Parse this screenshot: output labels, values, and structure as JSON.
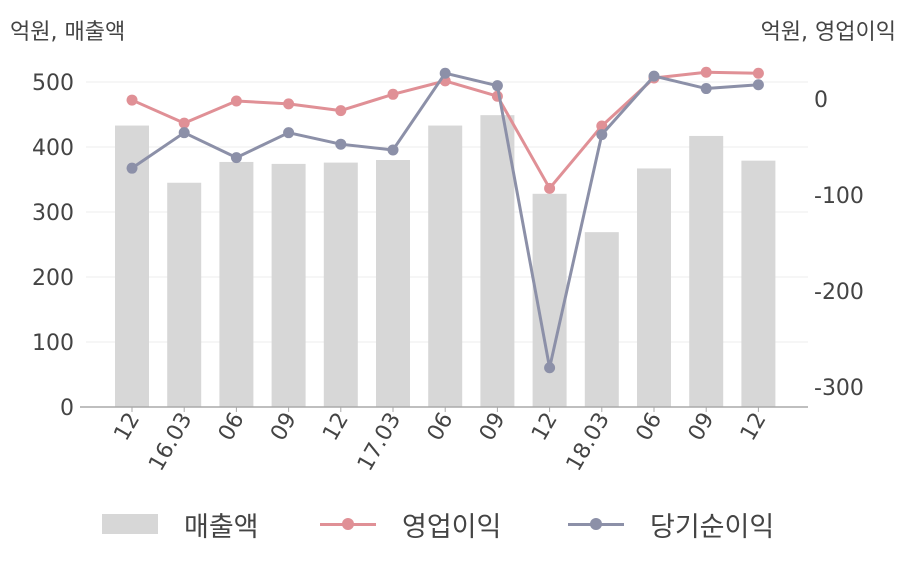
{
  "units": {
    "left": "억원, 매출액",
    "right": "억원, 영업이익"
  },
  "colors": {
    "bar": "#d7d7d7",
    "op": "#e09096",
    "net": "#8c90a8",
    "axis": "#aaaaaa",
    "grid": "#ececec"
  },
  "legend": {
    "bar": "매출액",
    "op": "영업이익",
    "net": "당기순이익"
  },
  "chart_data": {
    "type": "bar+line",
    "categories": [
      "12",
      "16.03",
      "06",
      "09",
      "12",
      "17.03",
      "06",
      "09",
      "12",
      "18.03",
      "06",
      "09",
      "12"
    ],
    "y_left": {
      "ylim": [
        0,
        500
      ],
      "ticks": [
        "0",
        "100",
        "200",
        "300",
        "400",
        "500"
      ]
    },
    "y_right": {
      "ylim": [
        -322,
        22
      ],
      "ticks": [
        "0",
        "-100",
        "-200",
        "-300"
      ]
    },
    "series": [
      {
        "name": "매출액",
        "type": "bar",
        "axis": "left",
        "values": [
          433,
          345,
          377,
          374,
          376,
          380,
          433,
          449,
          328,
          269,
          367,
          417,
          379
        ]
      },
      {
        "name": "영업이익",
        "type": "line",
        "axis": "right",
        "values": [
          -1,
          -25,
          -2,
          -5,
          -12,
          5,
          19,
          3,
          -93,
          -28,
          22,
          28,
          27
        ]
      },
      {
        "name": "당기순이익",
        "type": "line",
        "axis": "right",
        "values": [
          -72,
          -35,
          -61,
          -35,
          -47,
          -53,
          27,
          14,
          -280,
          -37,
          24,
          11,
          15
        ]
      }
    ],
    "grid": true,
    "legend_position": "bottom"
  }
}
